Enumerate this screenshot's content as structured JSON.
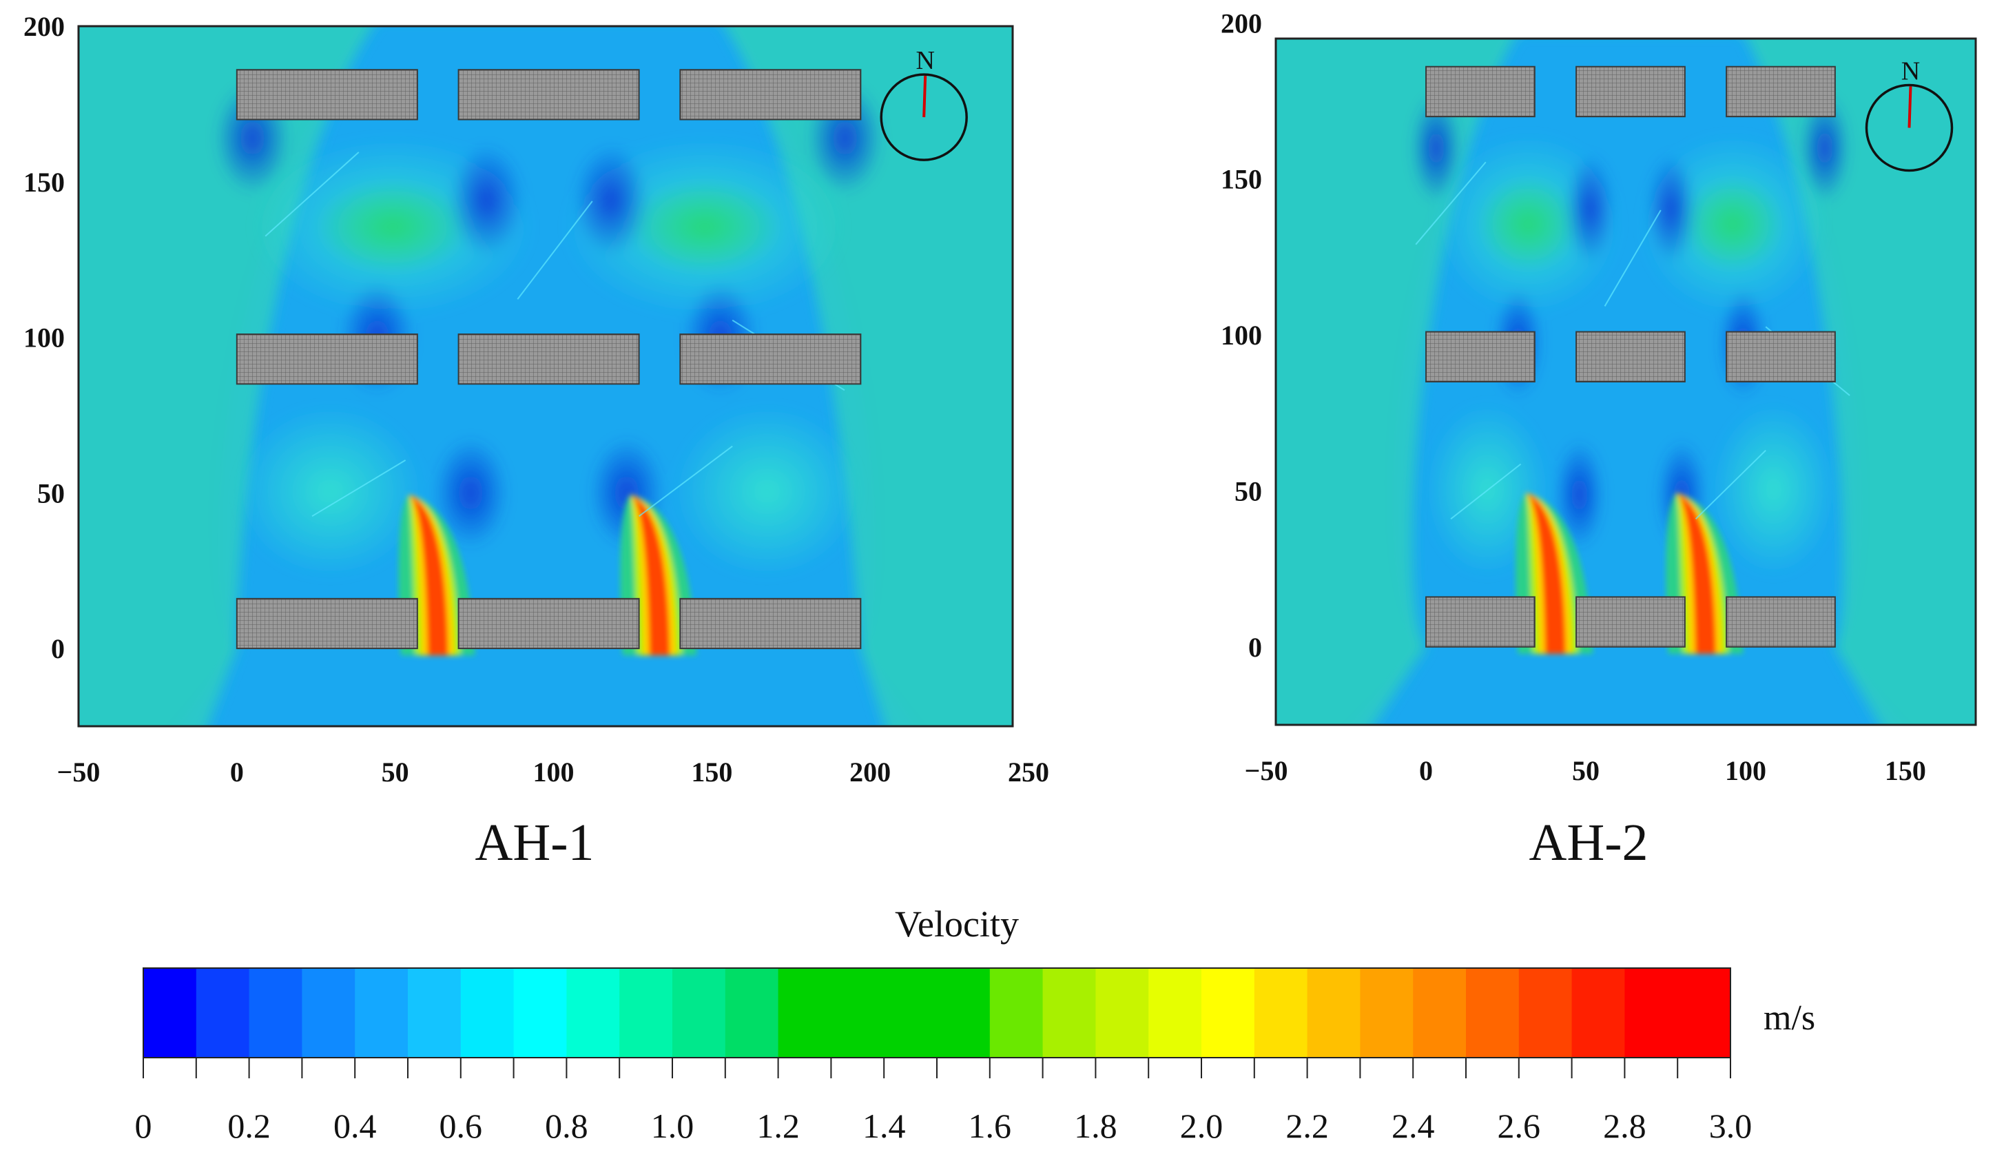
{
  "chart_data": [
    {
      "type": "heatmap",
      "title": "AH-1",
      "x_ticks": [
        "−50",
        "0",
        "50",
        "100",
        "150",
        "200",
        "250"
      ],
      "y_ticks": [
        "0",
        "50",
        "100",
        "150",
        "200"
      ],
      "xlim": [
        -50,
        245
      ],
      "ylim": [
        -25,
        200
      ],
      "compass_label": "N",
      "buildings": [
        {
          "x": [
            0,
            57
          ],
          "y": [
            0,
            16
          ]
        },
        {
          "x": [
            70,
            127
          ],
          "y": [
            0,
            16
          ]
        },
        {
          "x": [
            140,
            197
          ],
          "y": [
            0,
            16
          ]
        },
        {
          "x": [
            0,
            57
          ],
          "y": [
            85,
            101
          ]
        },
        {
          "x": [
            70,
            127
          ],
          "y": [
            85,
            101
          ]
        },
        {
          "x": [
            140,
            197
          ],
          "y": [
            85,
            101
          ]
        },
        {
          "x": [
            0,
            57
          ],
          "y": [
            170,
            186
          ]
        },
        {
          "x": [
            70,
            127
          ],
          "y": [
            170,
            186
          ]
        },
        {
          "x": [
            140,
            197
          ],
          "y": [
            170,
            186
          ]
        }
      ]
    },
    {
      "type": "heatmap",
      "title": "AH-2",
      "x_ticks": [
        "−50",
        "0",
        "50",
        "100",
        "150"
      ],
      "y_ticks": [
        "0",
        "50",
        "100",
        "150",
        "200"
      ],
      "xlim": [
        -47,
        172
      ],
      "ylim": [
        -25,
        195
      ],
      "compass_label": "N",
      "buildings": [
        {
          "x": [
            0,
            34
          ],
          "y": [
            0,
            16
          ]
        },
        {
          "x": [
            47,
            81
          ],
          "y": [
            0,
            16
          ]
        },
        {
          "x": [
            94,
            128
          ],
          "y": [
            0,
            16
          ]
        },
        {
          "x": [
            0,
            34
          ],
          "y": [
            85,
            101
          ]
        },
        {
          "x": [
            47,
            81
          ],
          "y": [
            85,
            101
          ]
        },
        {
          "x": [
            94,
            128
          ],
          "y": [
            85,
            101
          ]
        },
        {
          "x": [
            0,
            34
          ],
          "y": [
            170,
            186
          ]
        },
        {
          "x": [
            47,
            81
          ],
          "y": [
            170,
            186
          ]
        },
        {
          "x": [
            94,
            128
          ],
          "y": [
            170,
            186
          ]
        }
      ]
    }
  ],
  "colorbar": {
    "title": "Velocity",
    "unit": "m/s",
    "min": 0,
    "max": 3.0,
    "tick_labels": [
      "0",
      "0.2",
      "0.4",
      "0.6",
      "0.8",
      "1.0",
      "1.2",
      "1.4",
      "1.6",
      "1.8",
      "2.0",
      "2.2",
      "2.4",
      "2.6",
      "2.8",
      "3.0"
    ],
    "colors": [
      "#0000ff",
      "#0a3fff",
      "#0a64ff",
      "#0f8aff",
      "#14a8ff",
      "#14c4ff",
      "#00eaff",
      "#00ffff",
      "#00ffd4",
      "#00f5aa",
      "#00e88c",
      "#00dd66",
      "#00d200",
      "#00d200",
      "#00d200",
      "#00d200",
      "#6ae800",
      "#a8f000",
      "#c8f500",
      "#e6ff00",
      "#ffff00",
      "#ffe000",
      "#ffc000",
      "#ffa200",
      "#ff8800",
      "#ff6600",
      "#ff4400",
      "#ff2000",
      "#ff0000",
      "#ff0000"
    ]
  }
}
